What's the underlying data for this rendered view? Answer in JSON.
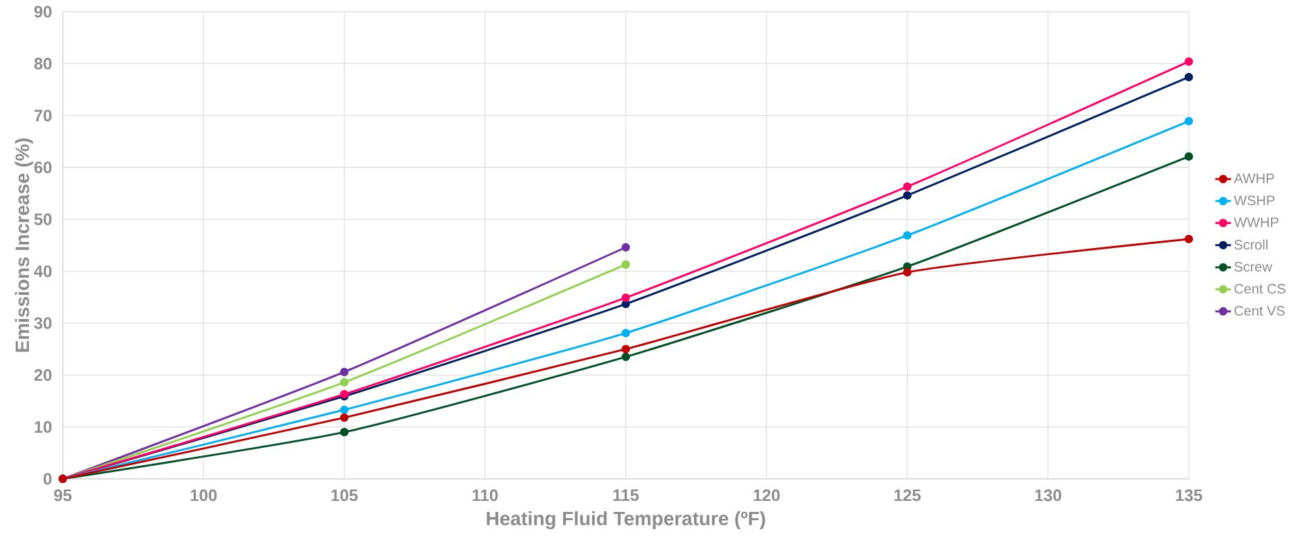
{
  "chart_data": {
    "type": "line",
    "xlabel": "Heating Fluid Temperature (ºF)",
    "ylabel": "Emissions Increase (%)",
    "x": [
      95,
      105,
      115,
      125,
      135
    ],
    "series": [
      {
        "name": "AWHP",
        "color": "#c00000",
        "values": [
          0,
          11.8,
          25.0,
          39.8,
          46.2
        ]
      },
      {
        "name": "WSHP",
        "color": "#00b0f0",
        "values": [
          0,
          13.3,
          28.1,
          46.9,
          68.9
        ]
      },
      {
        "name": "WWHP",
        "color": "#ff0066",
        "values": [
          0,
          16.3,
          34.9,
          56.3,
          80.4
        ]
      },
      {
        "name": "Scroll",
        "color": "#002060",
        "values": [
          0,
          15.9,
          33.7,
          54.6,
          77.4
        ]
      },
      {
        "name": "Screw",
        "color": "#005028",
        "values": [
          0,
          9.0,
          23.5,
          40.9,
          62.1
        ]
      },
      {
        "name": "Cent CS",
        "color": "#92d050",
        "x": [
          95,
          105,
          115
        ],
        "values": [
          0,
          18.6,
          41.3
        ]
      },
      {
        "name": "Cent VS",
        "color": "#7030a0",
        "x": [
          95,
          105,
          115
        ],
        "values": [
          0,
          20.6,
          44.6
        ]
      }
    ],
    "xlim": [
      95,
      135
    ],
    "xticks": [
      95,
      100,
      105,
      110,
      115,
      120,
      125,
      130,
      135
    ],
    "ylim": [
      0,
      90
    ],
    "yticks": [
      0,
      10,
      20,
      30,
      40,
      50,
      60,
      70,
      80,
      90
    ],
    "grid": true,
    "legend": "right",
    "marker": "circle",
    "line_style": "solid"
  }
}
